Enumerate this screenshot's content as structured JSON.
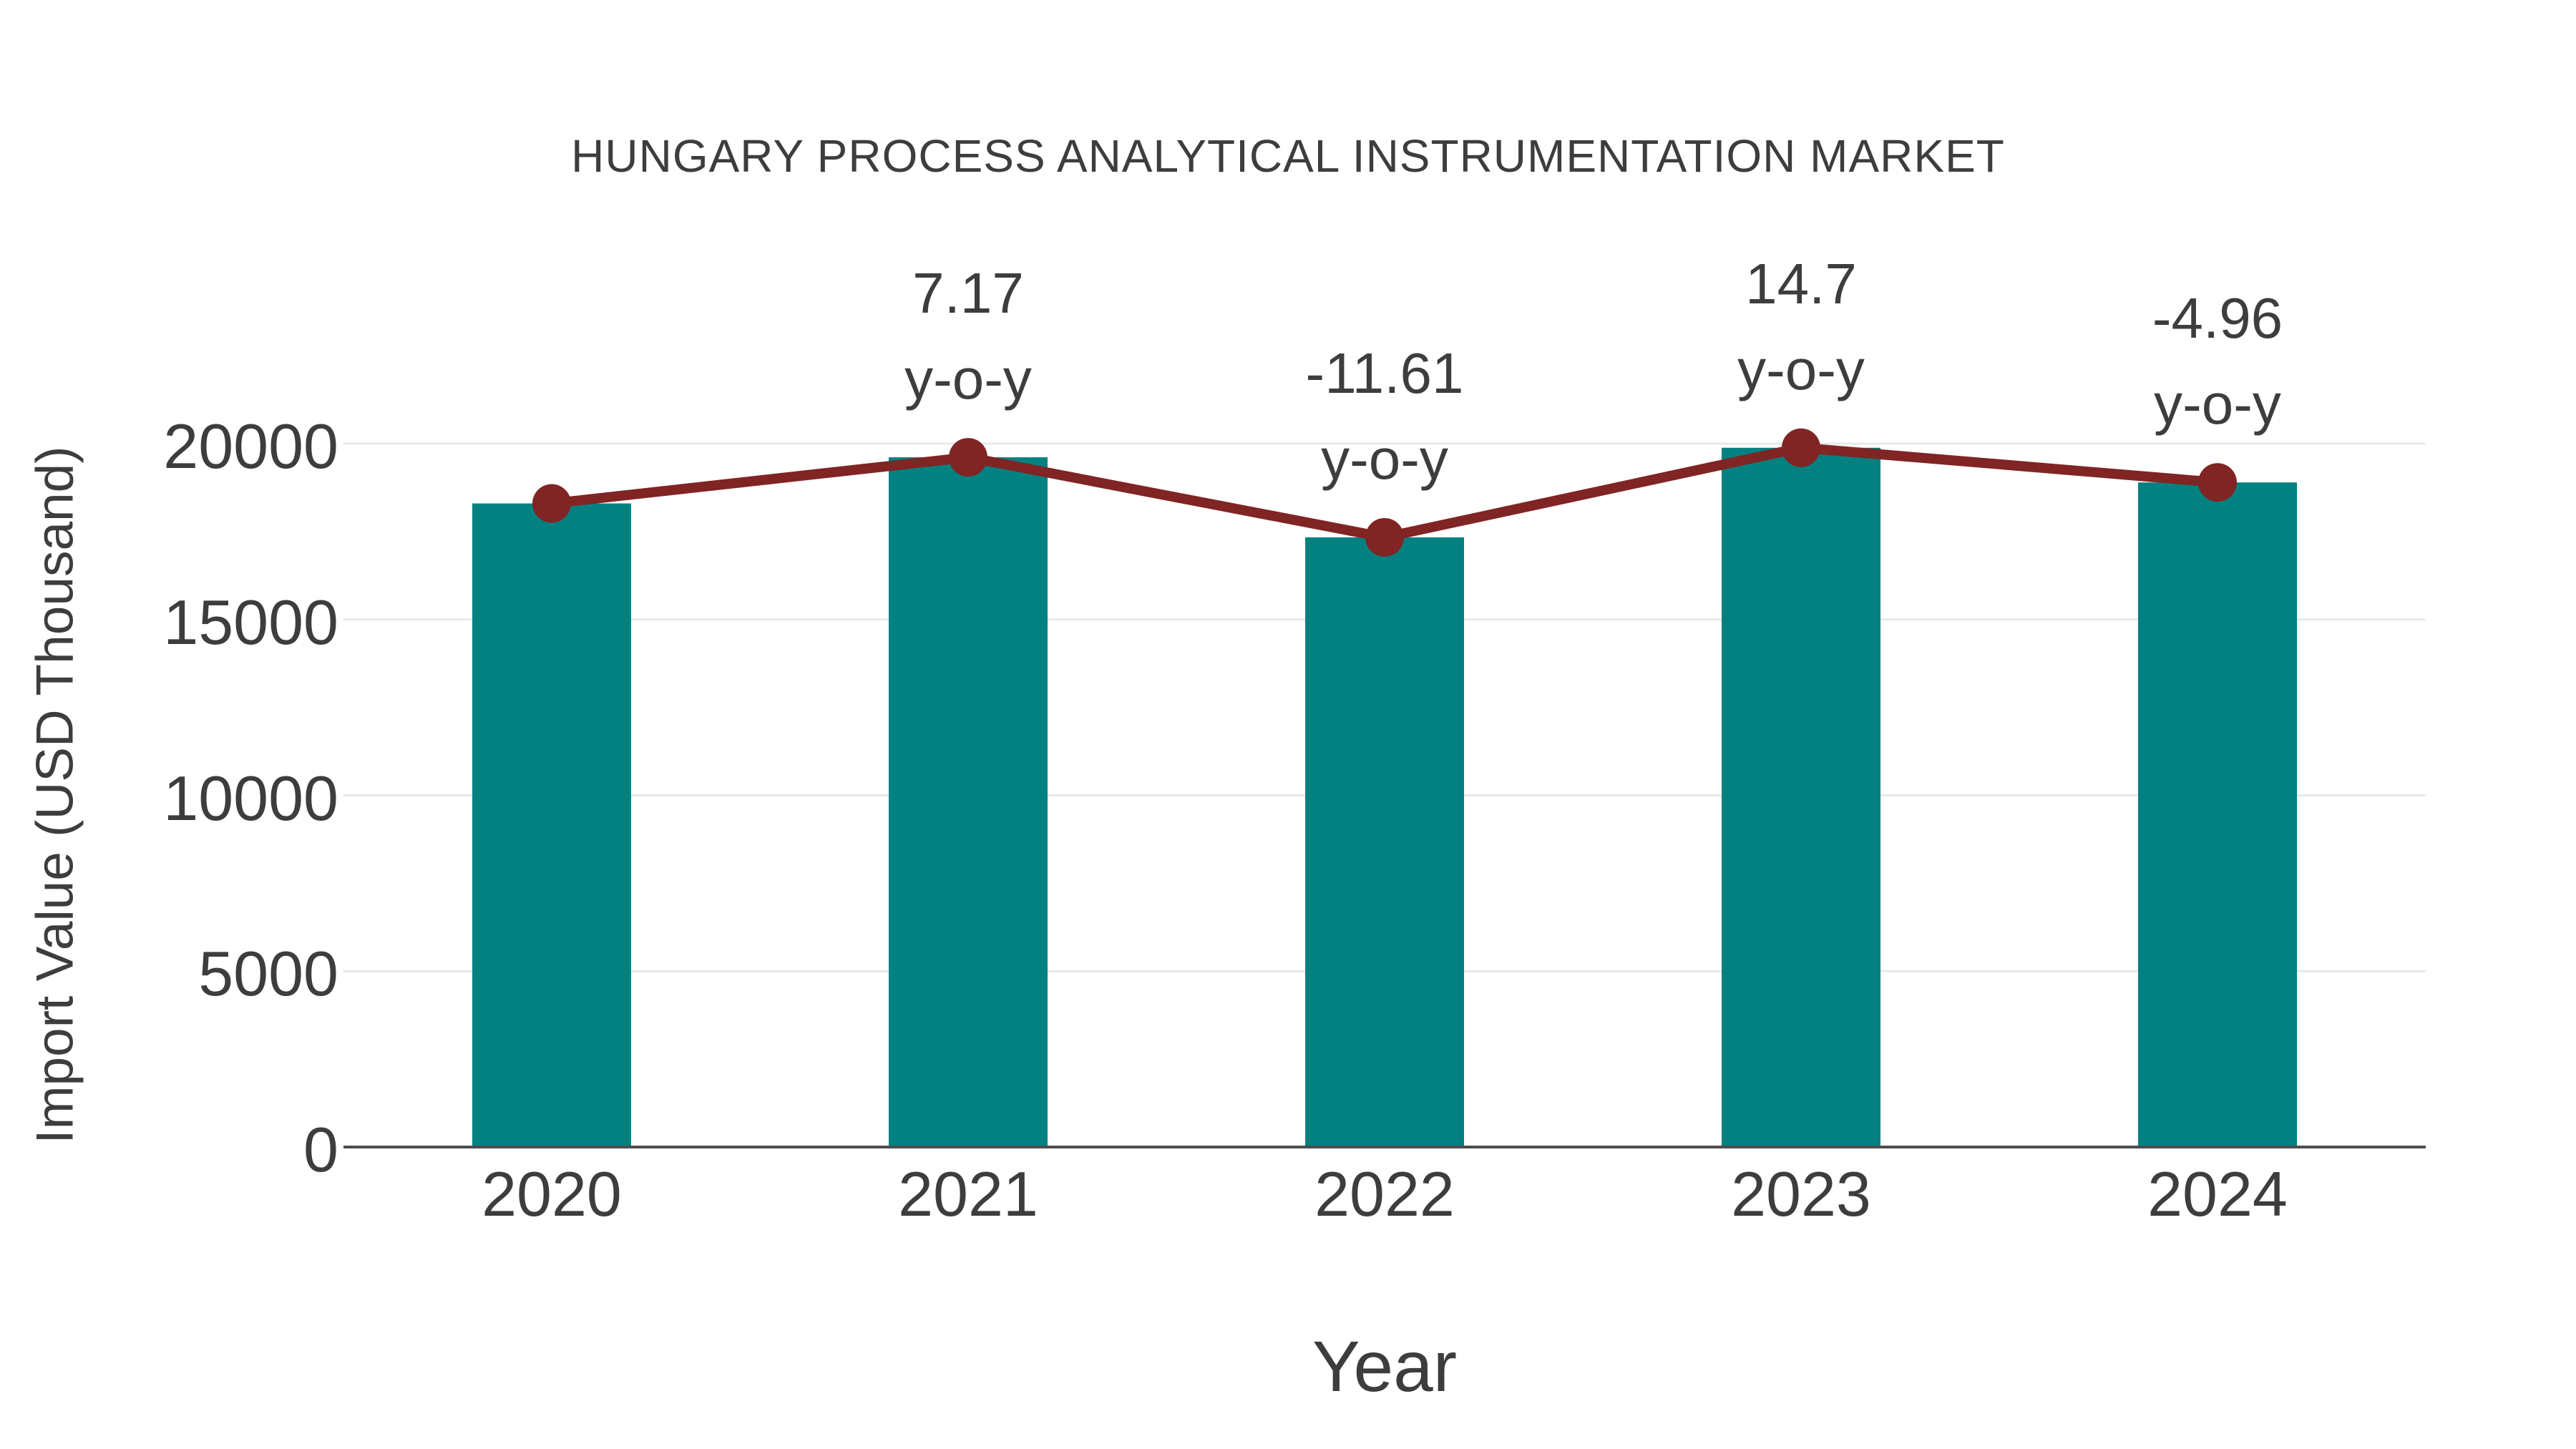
{
  "chart_data": {
    "type": "bar",
    "title": "HUNGARY PROCESS ANALYTICAL INSTRUMENTATION MARKET",
    "xlabel": "Year",
    "ylabel": "Import Value (USD Thousand)",
    "categories": [
      "2020",
      "2021",
      "2022",
      "2023",
      "2024"
    ],
    "series": [
      {
        "name": "Import Value bars",
        "type": "bar",
        "color": "#038181",
        "values": [
          18300,
          19612,
          17335,
          19883,
          18897
        ]
      },
      {
        "name": "Import Value trend line",
        "type": "line",
        "color": "#802424",
        "values": [
          18300,
          19612,
          17335,
          19883,
          18897
        ]
      }
    ],
    "annotations": [
      {
        "category": "2020",
        "lines": []
      },
      {
        "category": "2021",
        "lines": [
          "7.17",
          "y-o-y"
        ]
      },
      {
        "category": "2022",
        "lines": [
          "-11.61",
          "y-o-y"
        ]
      },
      {
        "category": "2023",
        "lines": [
          "14.7",
          "y-o-y"
        ]
      },
      {
        "category": "2024",
        "lines": [
          "-4.96",
          "y-o-y"
        ]
      }
    ],
    "yticks": [
      0,
      5000,
      10000,
      15000,
      20000
    ],
    "ylim": [
      0,
      21000
    ],
    "grid": true,
    "legend_position": "none",
    "colors": {
      "bar": "#038181",
      "line": "#802424",
      "gridline": "#e8e8e8",
      "axis_spine": "#4d4d4d",
      "text": "#3d3d3d",
      "background": "#ffffff"
    }
  }
}
